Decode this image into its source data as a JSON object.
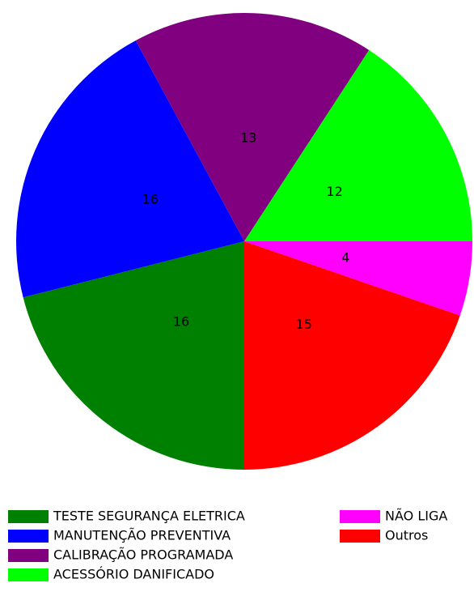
{
  "chart_data": {
    "type": "pie",
    "categories": [
      "TESTE SEGURANÇA ELETRICA",
      "MANUTENÇÃO PREVENTIVA",
      "CALIBRAÇÃO PROGRAMADA",
      "ACESSÓRIO DANIFICADO",
      "NÃO LIGA",
      "Outros"
    ],
    "values": [
      16,
      16,
      13,
      12,
      4,
      15
    ],
    "colors": [
      "#008000",
      "#0000ff",
      "#800080",
      "#00ff00",
      "#ff00ff",
      "#ff0000"
    ]
  }
}
